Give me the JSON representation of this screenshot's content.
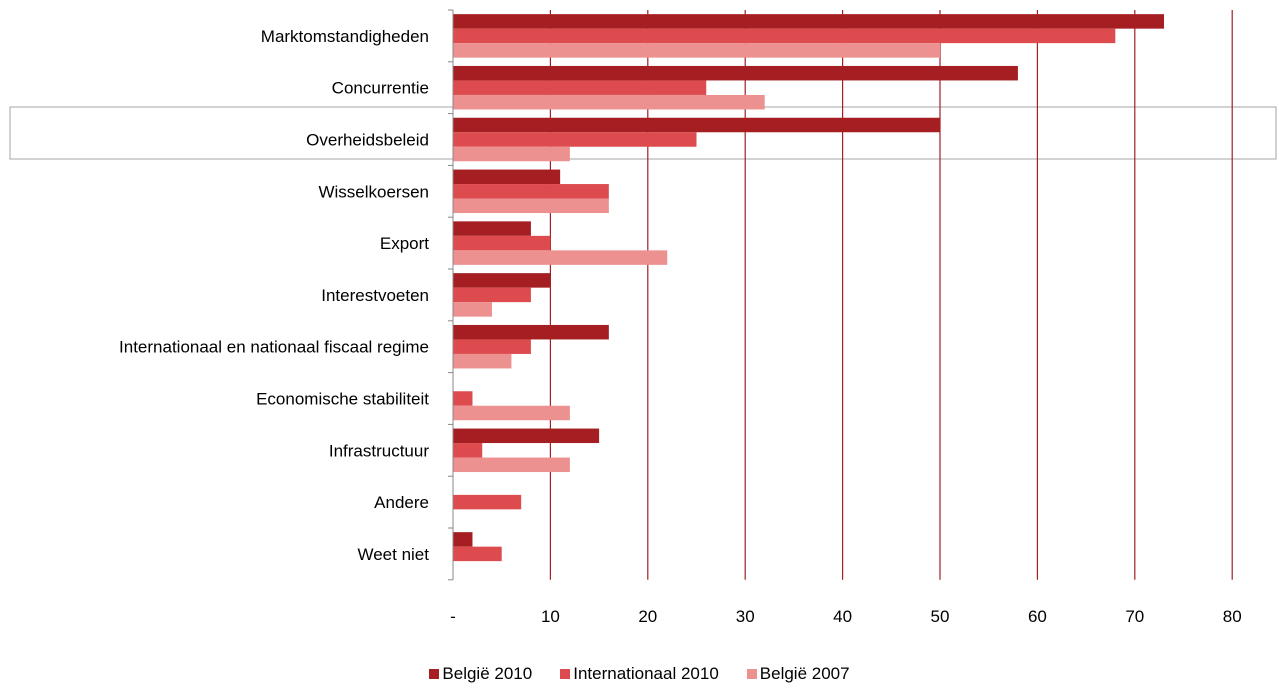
{
  "chart_data": {
    "type": "bar",
    "orientation": "horizontal",
    "categories": [
      "Marktomstandigheden",
      "Concurrentie",
      "Overheidsbeleid",
      "Wisselkoersen",
      "Export",
      "Interestvoeten",
      "Internationaal en nationaal fiscaal regime",
      "Economische stabiliteit",
      "Infrastructuur",
      "Andere",
      "Weet niet"
    ],
    "series": [
      {
        "name": "België 2010",
        "color": "#a41e22",
        "values": [
          73,
          58,
          50,
          11,
          8,
          10,
          16,
          0,
          15,
          0,
          2
        ]
      },
      {
        "name": "Internationaal 2010",
        "color": "#dd4b4f",
        "values": [
          68,
          26,
          25,
          16,
          10,
          8,
          8,
          2,
          3,
          7,
          5
        ]
      },
      {
        "name": "België 2007",
        "color": "#ec9190",
        "values": [
          50,
          32,
          12,
          16,
          22,
          4,
          6,
          12,
          12,
          0,
          0
        ]
      }
    ],
    "xlim": [
      0,
      80
    ],
    "xticks": [
      0,
      10,
      20,
      30,
      40,
      50,
      60,
      70,
      80
    ],
    "xtick_labels": [
      "-",
      "10",
      "20",
      "30",
      "40",
      "50",
      "60",
      "70",
      "80"
    ],
    "highlighted_category": "Overheidsbeleid",
    "grid": true,
    "legend_position": "bottom"
  }
}
